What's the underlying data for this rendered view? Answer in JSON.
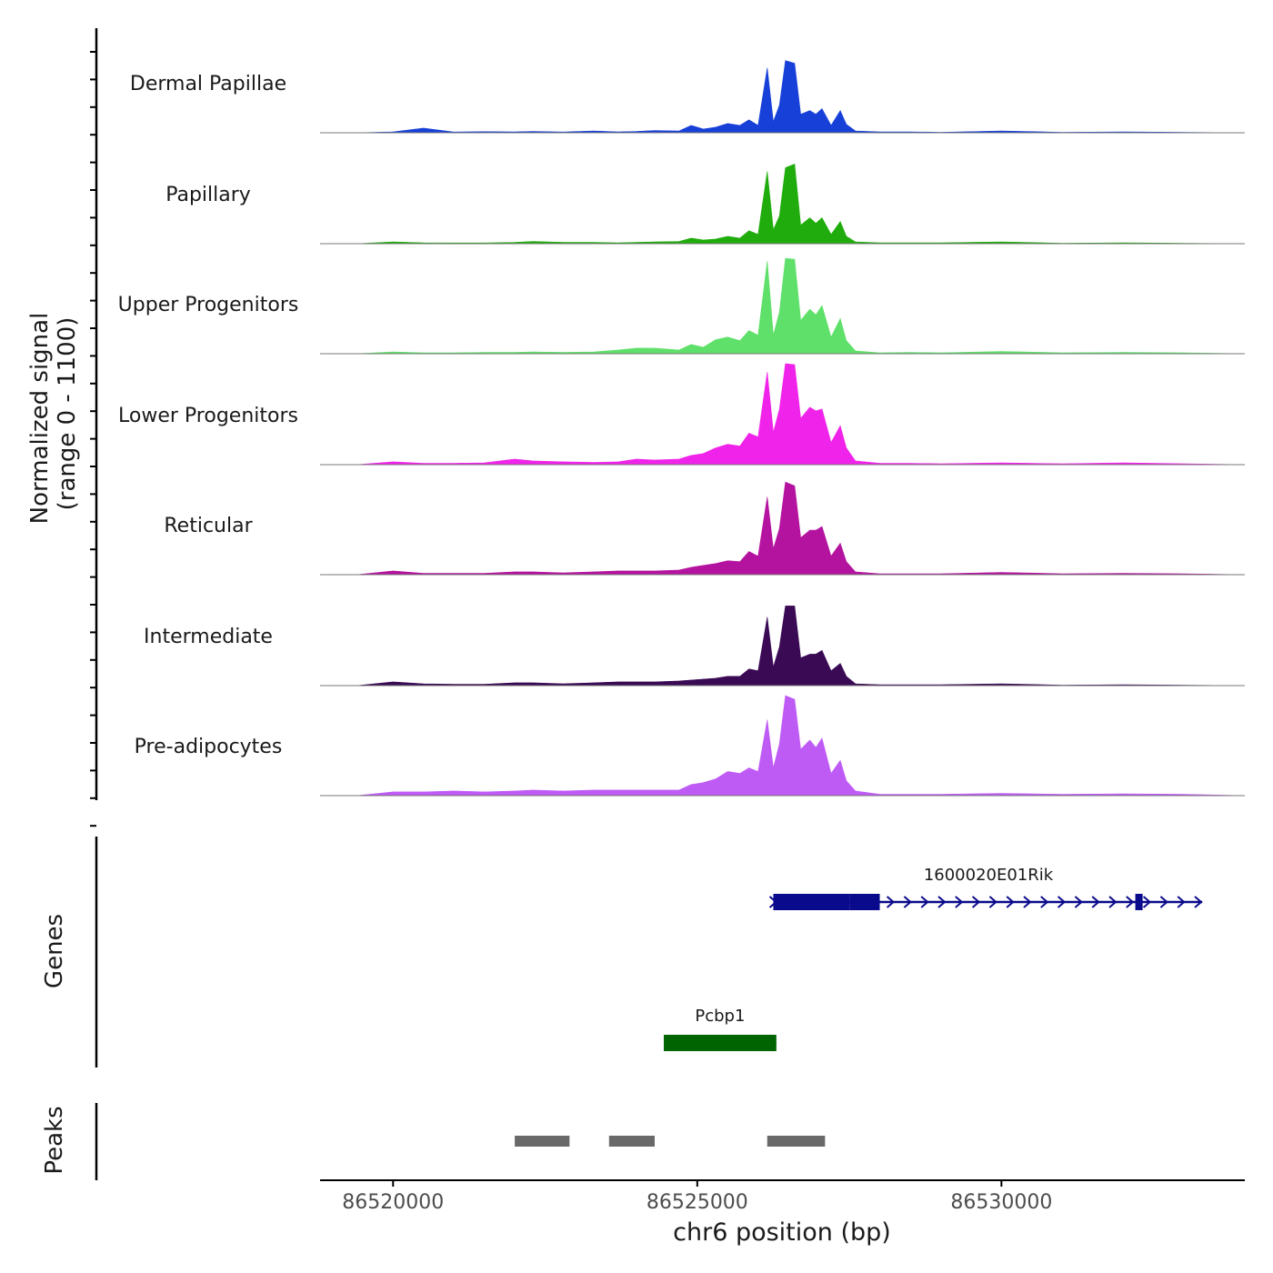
{
  "chart_data": {
    "type": "area",
    "region": "chr6",
    "xlim": [
      86518800,
      86534000
    ],
    "x_ticks": [
      86520000,
      86525000,
      86530000
    ],
    "x_tick_labels": [
      "86520000",
      "86525000",
      "86530000"
    ],
    "xlabel": "chr6 position (bp)",
    "ylabel_line1": "Normalized signal",
    "ylabel_line2": "(range 0 - 1100)",
    "ylim": [
      0,
      1100
    ],
    "tracks": [
      {
        "name": "Dermal Papillae",
        "color": "#1740d8"
      },
      {
        "name": "Papillary",
        "color": "#1fac0c"
      },
      {
        "name": "Upper Progenitors",
        "color": "#5fe06a"
      },
      {
        "name": "Lower Progenitors",
        "color": "#f023ea"
      },
      {
        "name": "Reticular",
        "color": "#b4139f"
      },
      {
        "name": "Intermediate",
        "color": "#3a0a55"
      },
      {
        "name": "Pre-adipocytes",
        "color": "#bf5bf5"
      }
    ],
    "signal_x": [
      86519400,
      86520000,
      86520500,
      86521000,
      86521500,
      86522000,
      86522300,
      86522800,
      86523300,
      86523700,
      86524000,
      86524300,
      86524700,
      86524900,
      86525100,
      86525300,
      86525500,
      86525700,
      86525850,
      86526000,
      86526150,
      86526250,
      86526350,
      86526450,
      86526600,
      86526700,
      86526850,
      86526950,
      86527050,
      86527200,
      86527350,
      86527450,
      86527600,
      86528000,
      86528500,
      86529000,
      86530000,
      86531000,
      86532000,
      86533000,
      86534000
    ],
    "series": [
      {
        "name": "Dermal Papillae",
        "values": [
          0,
          10,
          50,
          8,
          12,
          10,
          15,
          8,
          20,
          10,
          15,
          25,
          20,
          80,
          40,
          60,
          100,
          80,
          140,
          80,
          700,
          120,
          300,
          780,
          750,
          200,
          240,
          200,
          260,
          80,
          240,
          90,
          20,
          10,
          10,
          5,
          20,
          5,
          10,
          5,
          0
        ]
      },
      {
        "name": "Papillary",
        "values": [
          0,
          20,
          10,
          8,
          8,
          15,
          25,
          15,
          15,
          10,
          15,
          20,
          25,
          60,
          40,
          50,
          80,
          60,
          140,
          100,
          780,
          150,
          300,
          820,
          860,
          200,
          280,
          220,
          280,
          100,
          240,
          80,
          20,
          10,
          10,
          10,
          20,
          5,
          10,
          5,
          0
        ]
      },
      {
        "name": "Upper Progenitors",
        "values": [
          0,
          20,
          10,
          10,
          15,
          15,
          20,
          15,
          20,
          40,
          60,
          60,
          40,
          100,
          70,
          150,
          180,
          140,
          250,
          200,
          1000,
          200,
          450,
          1030,
          1020,
          360,
          480,
          420,
          520,
          180,
          380,
          140,
          30,
          10,
          15,
          10,
          25,
          10,
          15,
          10,
          0
        ]
      },
      {
        "name": "Lower Progenitors",
        "values": [
          0,
          30,
          15,
          15,
          20,
          60,
          40,
          30,
          25,
          30,
          60,
          50,
          60,
          100,
          120,
          180,
          220,
          200,
          340,
          300,
          1000,
          350,
          600,
          1090,
          1080,
          500,
          620,
          580,
          600,
          240,
          420,
          180,
          40,
          15,
          15,
          10,
          20,
          10,
          20,
          10,
          0
        ]
      },
      {
        "name": "Reticular",
        "values": [
          0,
          40,
          15,
          15,
          15,
          30,
          30,
          20,
          30,
          40,
          40,
          40,
          50,
          80,
          100,
          120,
          150,
          140,
          250,
          200,
          840,
          280,
          500,
          1000,
          960,
          400,
          480,
          480,
          520,
          200,
          340,
          140,
          30,
          10,
          10,
          10,
          25,
          10,
          15,
          10,
          0
        ]
      },
      {
        "name": "Intermediate",
        "values": [
          0,
          40,
          20,
          15,
          15,
          30,
          30,
          20,
          30,
          40,
          40,
          40,
          50,
          60,
          70,
          80,
          100,
          100,
          180,
          160,
          740,
          200,
          420,
          860,
          860,
          300,
          340,
          340,
          380,
          160,
          240,
          100,
          20,
          10,
          10,
          10,
          20,
          5,
          10,
          5,
          0
        ]
      },
      {
        "name": "Pre-adipocytes",
        "values": [
          0,
          40,
          40,
          50,
          40,
          50,
          60,
          50,
          60,
          60,
          60,
          60,
          60,
          120,
          140,
          180,
          260,
          240,
          300,
          260,
          820,
          300,
          560,
          1080,
          1040,
          500,
          600,
          520,
          620,
          240,
          380,
          160,
          50,
          15,
          15,
          15,
          25,
          15,
          20,
          15,
          0
        ]
      }
    ],
    "genes_label": "Genes",
    "genes": [
      {
        "name": "1600020E01Rik",
        "start": 86526250,
        "end": 86533300,
        "strand": "+",
        "exons": [
          [
            86526250,
            86527500
          ],
          [
            86527500,
            86528000
          ],
          [
            86532200,
            86532320
          ]
        ],
        "color": "#0a0a8c"
      },
      {
        "name": "Pcbp1",
        "start": 86524450,
        "end": 86526300,
        "strand": "+",
        "exons": [
          [
            86524450,
            86526300
          ]
        ],
        "color": "#006400"
      }
    ],
    "peaks_label": "Peaks",
    "peaks": [
      [
        86522000,
        86522900
      ],
      [
        86523550,
        86524300
      ],
      [
        86526150,
        86527100
      ]
    ],
    "peak_color": "#696969"
  }
}
